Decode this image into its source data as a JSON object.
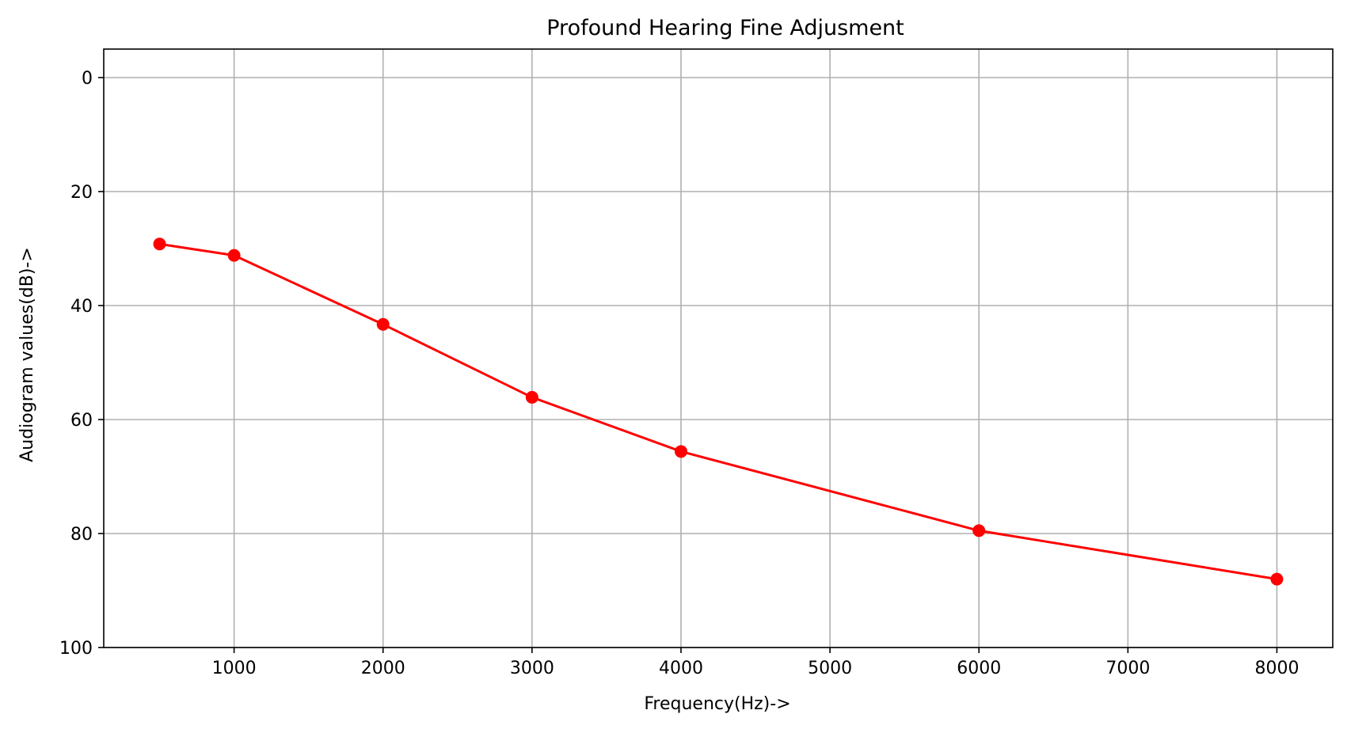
{
  "chart_data": {
    "type": "line",
    "title": "Profound Hearing Fine Adjusment",
    "xlabel": "Frequency(Hz)->",
    "ylabel": "Audiogram values(dB)->",
    "x": [
      500,
      1000,
      2000,
      3000,
      4000,
      6000,
      8000
    ],
    "series": [
      {
        "values": [
          29.2,
          31.2,
          43.3,
          56.1,
          65.6,
          79.5,
          88.0
        ],
        "color": "#ff0000",
        "marker": "circle"
      }
    ],
    "xlim": [
      125,
      8375
    ],
    "ylim": [
      100,
      -5
    ],
    "y_inverted": true,
    "xticks": [
      1000,
      2000,
      3000,
      4000,
      5000,
      6000,
      7000,
      8000
    ],
    "xtick_labels": [
      "1000",
      "2000",
      "3000",
      "4000",
      "5000",
      "6000",
      "7000",
      "8000"
    ],
    "yticks": [
      0,
      20,
      40,
      60,
      80,
      100
    ],
    "ytick_labels": [
      "0",
      "20",
      "40",
      "60",
      "80",
      "100"
    ],
    "grid": true,
    "legend": false
  }
}
